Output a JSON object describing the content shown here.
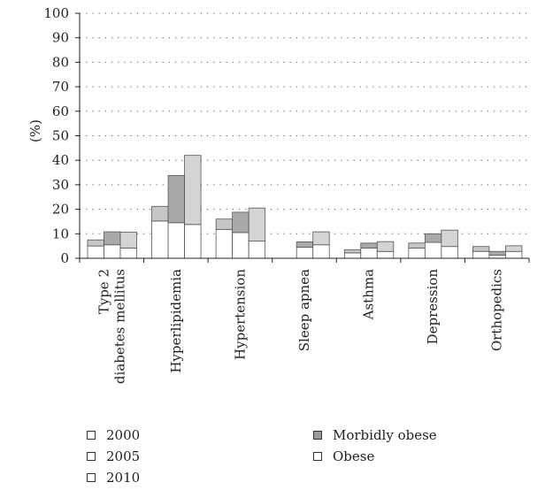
{
  "chart_data": {
    "type": "bar",
    "stacked": true,
    "grouped_by": [
      "2000",
      "2005",
      "2010"
    ],
    "categories": [
      "Type 2 diabetes mellitus",
      "Hyperlipidemia",
      "Hypertension",
      "Sleep apnea",
      "Asthma",
      "Depression",
      "Orthopedics"
    ],
    "category_label_lines": [
      [
        "Type 2",
        "diabetes mellitus"
      ],
      [
        "Hyperlipidemia"
      ],
      [
        "Hypertension"
      ],
      [
        "Sleep apnea"
      ],
      [
        "Asthma"
      ],
      [
        "Depression"
      ],
      [
        "Orthopedics"
      ]
    ],
    "series": [
      {
        "name": "Obese",
        "values": {
          "2000": [
            5,
            15.2,
            11.8,
            0,
            2.2,
            4.2,
            2.8
          ],
          "2005": [
            5.5,
            14.5,
            10.5,
            4.5,
            4.2,
            6.5,
            1.3
          ],
          "2010": [
            4.2,
            13.8,
            7,
            5.5,
            2.8,
            4.8,
            2.8
          ]
        }
      },
      {
        "name": "Morbidly obese",
        "values": {
          "2000": [
            2.5,
            6,
            4.2,
            0,
            1.3,
            2,
            2
          ],
          "2005": [
            5.3,
            19.3,
            8.3,
            2.2,
            2,
            3.5,
            1.5
          ],
          "2010": [
            6.5,
            28.2,
            13.5,
            5.3,
            4,
            6.7,
            2.3
          ]
        }
      }
    ],
    "totals": {
      "2000": [
        7.5,
        21.2,
        16,
        0,
        3.5,
        6.2,
        4.8
      ],
      "2005": [
        10.8,
        33.8,
        18.8,
        6.7,
        6.2,
        10,
        2.8
      ],
      "2010": [
        10.7,
        42,
        20.5,
        10.8,
        6.8,
        11.5,
        5.1
      ]
    },
    "ylabel": "(%)",
    "ylim": [
      0,
      100
    ],
    "yticks": [
      0,
      10,
      20,
      30,
      40,
      50,
      60,
      70,
      80,
      90,
      100
    ],
    "grid": "horizontal dotted",
    "legend_years": [
      "2000",
      "2005",
      "2010"
    ],
    "legend_types": [
      "Morbidly obese",
      "Obese"
    ],
    "legend_placement": "bottom"
  },
  "colors": {
    "obese_fill": "#ffffff",
    "morbid_2000": "#c6c6c6",
    "morbid_2005": "#a9a9a9",
    "morbid_2010": "#d4d4d4",
    "edge": "#555555",
    "grid": "#555555",
    "legend_morbid": "#9a9a9a"
  }
}
